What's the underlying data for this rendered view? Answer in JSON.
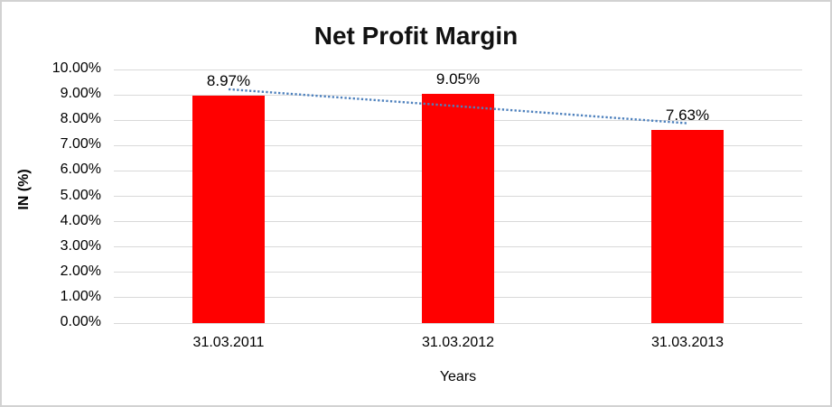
{
  "chart_data": {
    "type": "bar",
    "title": "Net Profit Margin",
    "xlabel": "Years",
    "ylabel": "IN (%)",
    "categories": [
      "31.03.2011",
      "31.03.2012",
      "31.03.2013"
    ],
    "values": [
      8.97,
      9.05,
      7.63
    ],
    "data_labels": [
      "8.97%",
      "9.05%",
      "7.63%"
    ],
    "y_ticks": [
      "0.00%",
      "1.00%",
      "2.00%",
      "3.00%",
      "4.00%",
      "5.00%",
      "6.00%",
      "7.00%",
      "8.00%",
      "9.00%",
      "10.00%"
    ],
    "ylim": [
      0,
      10
    ],
    "grid": true,
    "legend": "none",
    "bar_color": "#ff0000",
    "gridline_color": "#d9d9d9",
    "text_color": "#000000",
    "trendline": {
      "type": "linear",
      "style": "dotted",
      "color": "#4e81bd",
      "values_at_categories": [
        9.22,
        8.55,
        7.88
      ]
    }
  }
}
